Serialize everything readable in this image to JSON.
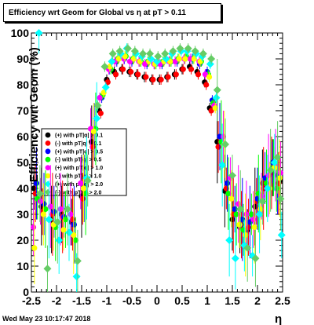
{
  "title": "Efficiency wrt Geom for Global vs   η at pT > 0.11",
  "footer": {
    "date": "Wed May 23 10:17:47 2018"
  },
  "chart_data": {
    "type": "scatter",
    "title": "Efficiency wrt Geom for Global vs   η at pT > 0.11",
    "xlabel": "η",
    "ylabel": "Efficiency wrt Geom (%)",
    "xlim": [
      -2.5,
      2.5
    ],
    "ylim": [
      0,
      100
    ],
    "x_ticks": [
      "-2.5",
      "-2",
      "-1.5",
      "-1",
      "-0.5",
      "0",
      "0.5",
      "1",
      "1.5",
      "2",
      "2.5"
    ],
    "y_ticks": [
      "0",
      "10",
      "20",
      "30",
      "40",
      "50",
      "60",
      "70",
      "80",
      "90",
      "100"
    ],
    "grid": false,
    "legend_position": "left-middle",
    "series": [
      {
        "name": "(+) with pT|q| > 0.1",
        "color": "#000000",
        "marker": "circle",
        "x": [
          -2.45,
          -2.3,
          -2.1,
          -1.9,
          -1.7,
          -1.5,
          -1.3,
          -1.15,
          -1.0,
          -0.85,
          -0.7,
          -0.55,
          -0.4,
          -0.25,
          -0.1,
          0.05,
          0.2,
          0.35,
          0.5,
          0.65,
          0.8,
          0.95,
          1.05,
          1.2,
          1.35,
          1.5,
          1.65,
          1.8,
          1.95,
          2.1,
          2.3,
          2.45
        ],
        "y": [
          40,
          33,
          28,
          30,
          27,
          37,
          58,
          70,
          82,
          85,
          86,
          85,
          84,
          83,
          82,
          82,
          83,
          84,
          86,
          87,
          85,
          81,
          71,
          58,
          39,
          28,
          25,
          24,
          33,
          42,
          48,
          43
        ]
      },
      {
        "name": "(-) with pT|q| > 0.1",
        "color": "#ff0000",
        "marker": "circle",
        "x": [
          -2.42,
          -2.28,
          -2.08,
          -1.88,
          -1.68,
          -1.48,
          -1.28,
          -1.12,
          -0.98,
          -0.82,
          -0.68,
          -0.52,
          -0.38,
          -0.22,
          -0.08,
          0.08,
          0.22,
          0.38,
          0.52,
          0.68,
          0.82,
          0.98,
          1.08,
          1.22,
          1.38,
          1.52,
          1.68,
          1.82,
          1.98,
          2.12,
          2.28,
          2.42
        ],
        "y": [
          38,
          31,
          30,
          29,
          28,
          36,
          56,
          69,
          81,
          84,
          86,
          85,
          84,
          83,
          82,
          82,
          83,
          84,
          86,
          86,
          84,
          80,
          70,
          56,
          40,
          30,
          26,
          25,
          35,
          40,
          46,
          42
        ]
      },
      {
        "name": "(+) with pT|q| > 0.5",
        "color": "#0000ff",
        "marker": "circle",
        "x": [
          -2.4,
          -2.25,
          -2.05,
          -1.85,
          -1.65,
          -1.45,
          -1.25,
          -1.1,
          -0.95,
          -0.8,
          -0.65,
          -0.5,
          -0.35,
          -0.2,
          -0.05,
          0.1,
          0.25,
          0.4,
          0.55,
          0.7,
          0.85,
          1.0,
          1.1,
          1.25,
          1.4,
          1.55,
          1.7,
          1.85,
          2.0,
          2.15,
          2.3,
          2.4
        ],
        "y": [
          42,
          34,
          31,
          29,
          26,
          40,
          62,
          75,
          86,
          89,
          90,
          89,
          89,
          88,
          88,
          88,
          89,
          89,
          90,
          90,
          88,
          85,
          74,
          60,
          42,
          32,
          28,
          27,
          36,
          44,
          50,
          45
        ]
      },
      {
        "name": "(-) with pT|q| > 0.5",
        "color": "#00ff00",
        "marker": "circle",
        "x": [
          -2.38,
          -2.22,
          -2.02,
          -1.82,
          -1.62,
          -1.42,
          -1.22,
          -1.08,
          -0.92,
          -0.78,
          -0.62,
          -0.48,
          -0.32,
          -0.18,
          -0.02,
          0.12,
          0.28,
          0.42,
          0.58,
          0.72,
          0.88,
          1.02,
          1.12,
          1.28,
          1.42,
          1.58,
          1.72,
          1.88,
          2.02,
          2.18,
          2.32,
          2.38
        ],
        "y": [
          36,
          32,
          25,
          28,
          20,
          38,
          63,
          76,
          86,
          90,
          91,
          90,
          89,
          89,
          88,
          89,
          89,
          90,
          91,
          90,
          89,
          84,
          73,
          58,
          38,
          30,
          24,
          30,
          38,
          42,
          48,
          40
        ]
      },
      {
        "name": "(+) with pT|q| > 1.0",
        "color": "#ff00ff",
        "marker": "circle",
        "x": [
          -2.46,
          -2.32,
          -2.12,
          -1.92,
          -1.72,
          -1.52,
          -1.32,
          -1.14,
          -0.96,
          -0.84,
          -0.66,
          -0.54,
          -0.36,
          -0.24,
          -0.06,
          0.06,
          0.24,
          0.36,
          0.54,
          0.66,
          0.84,
          0.96,
          1.14,
          1.32,
          1.46,
          1.62,
          1.78,
          1.92,
          2.08,
          2.22,
          2.36,
          2.46
        ],
        "y": [
          25,
          35,
          33,
          32,
          30,
          42,
          63,
          75,
          86,
          89,
          90,
          89,
          89,
          88,
          88,
          88,
          89,
          89,
          90,
          90,
          89,
          84,
          72,
          60,
          44,
          34,
          30,
          28,
          37,
          45,
          49,
          46
        ]
      },
      {
        "name": "(-) with pT|q| > 1.0",
        "color": "#ffff00",
        "marker": "circle",
        "x": [
          -2.44,
          -2.26,
          -2.06,
          -1.86,
          -1.66,
          -1.46,
          -1.26,
          -1.06,
          -0.94,
          -0.76,
          -0.64,
          -0.46,
          -0.34,
          -0.16,
          -0.04,
          0.14,
          0.26,
          0.44,
          0.56,
          0.74,
          0.86,
          1.04,
          1.16,
          1.34,
          1.48,
          1.64,
          1.76,
          1.94,
          2.06,
          2.24,
          2.34,
          2.44
        ],
        "y": [
          17,
          30,
          26,
          24,
          22,
          40,
          62,
          77,
          87,
          90,
          91,
          90,
          89,
          89,
          88,
          89,
          89,
          90,
          90,
          90,
          89,
          83,
          71,
          57,
          36,
          26,
          22,
          25,
          32,
          40,
          48,
          44
        ]
      },
      {
        "name": "(+) with pT|q| > 2.0",
        "color": "#00ffff",
        "marker": "diamond",
        "x": [
          -2.35,
          -2.15,
          -1.95,
          -1.75,
          -1.6,
          -1.4,
          -1.2,
          -1.02,
          -0.9,
          -0.72,
          -0.6,
          -0.42,
          -0.3,
          -0.12,
          0.0,
          0.18,
          0.3,
          0.48,
          0.6,
          0.78,
          0.9,
          1.06,
          1.18,
          1.3,
          1.44,
          1.56,
          1.74,
          1.9,
          2.04,
          2.2,
          2.34,
          2.48
        ],
        "y": [
          100,
          28,
          20,
          23,
          6,
          44,
          67,
          79,
          89,
          92,
          94,
          92,
          91,
          90,
          89,
          90,
          92,
          93,
          93,
          92,
          91,
          88,
          75,
          49,
          20,
          13,
          18,
          14,
          30,
          40,
          50,
          22
        ]
      },
      {
        "name": "(-) with pT|q| > 2.0",
        "color": "#66cc66",
        "marker": "diamond",
        "x": [
          -2.33,
          -2.18,
          -1.98,
          -1.78,
          -1.58,
          -1.38,
          -1.18,
          -1.04,
          -0.88,
          -0.74,
          -0.58,
          -0.44,
          -0.28,
          -0.14,
          0.02,
          0.16,
          0.32,
          0.46,
          0.62,
          0.76,
          0.92,
          1.08,
          1.2,
          1.36,
          1.5,
          1.66,
          1.8,
          1.96,
          2.1,
          2.26,
          2.4,
          2.46
        ],
        "y": [
          38,
          9,
          27,
          32,
          12,
          43,
          72,
          87,
          92,
          93,
          94,
          93,
          92,
          92,
          91,
          92,
          93,
          94,
          94,
          93,
          92,
          90,
          78,
          57,
          45,
          32,
          17,
          13,
          35,
          47,
          52,
          36
        ]
      }
    ]
  }
}
